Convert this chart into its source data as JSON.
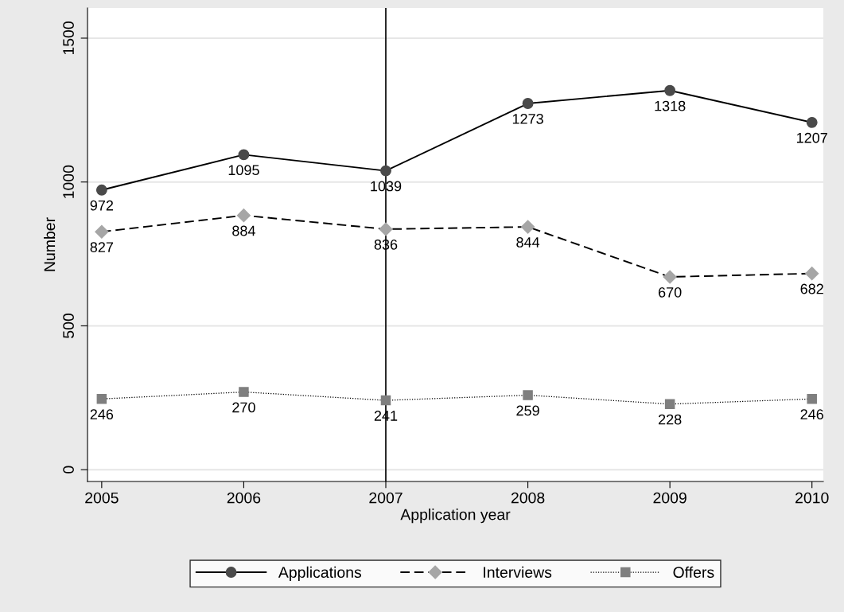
{
  "chart_data": {
    "type": "line",
    "xlabel": "Application year",
    "ylabel": "Number",
    "x": [
      2005,
      2006,
      2007,
      2008,
      2009,
      2010
    ],
    "series": [
      {
        "name": "Applications",
        "color": "#4a4a4a",
        "marker": "circle",
        "line_style": "solid",
        "values": [
          972,
          1095,
          1039,
          1273,
          1318,
          1207
        ]
      },
      {
        "name": "Interviews",
        "color": "#a6a6a6",
        "marker": "diamond",
        "line_style": "dashed",
        "values": [
          827,
          884,
          836,
          844,
          670,
          682
        ]
      },
      {
        "name": "Offers",
        "color": "#7f7f7f",
        "marker": "square",
        "line_style": "dotted",
        "values": [
          246,
          270,
          241,
          259,
          228,
          246
        ]
      }
    ],
    "xlim": [
      2004.9,
      2010.08
    ],
    "xticks": [
      2005,
      2006,
      2007,
      2008,
      2009,
      2010
    ],
    "ylim": [
      -41,
      1605
    ],
    "yticks": [
      0,
      500,
      1000,
      1500
    ],
    "ref_lines": [
      {
        "axis": "x",
        "value": 2007,
        "color": "#000000",
        "line_style": "solid"
      }
    ],
    "grid": "y",
    "legend": "bottom",
    "data_labels": true
  }
}
